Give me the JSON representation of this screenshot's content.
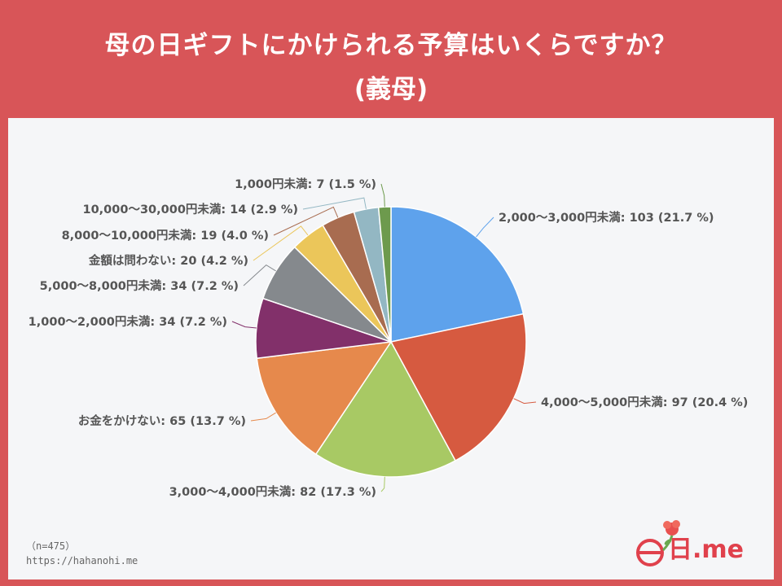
{
  "header": {
    "title_line1": "母の日ギフトにかけられる予算はいくらですか？",
    "title_line2": "(義母)"
  },
  "footer": {
    "sample": "（n=475）",
    "url": "https://hahanohi.me"
  },
  "logo": {
    "text": "日.me"
  },
  "colors": {
    "header_bg": "#d85558",
    "panel_bg": "#f5f6f8"
  },
  "chart_data": {
    "type": "pie",
    "title": "母の日ギフトにかけられる予算はいくらですか？ (義母)",
    "n": 475,
    "slices": [
      {
        "label": "2,000〜3,000円未満",
        "value": 103,
        "percent": 21.7,
        "color": "#5ea2ec",
        "text": "2,000〜3,000円未満: 103 (21.7 %)"
      },
      {
        "label": "4,000〜5,000円未満",
        "value": 97,
        "percent": 20.4,
        "color": "#d65a40",
        "text": "4,000〜5,000円未満: 97 (20.4 %)"
      },
      {
        "label": "3,000〜4,000円未満",
        "value": 82,
        "percent": 17.3,
        "color": "#a8c964",
        "text": "3,000〜4,000円未満: 82 (17.3 %)"
      },
      {
        "label": "お金をかけない",
        "value": 65,
        "percent": 13.7,
        "color": "#e6894c",
        "text": "お金をかけない: 65 (13.7 %)"
      },
      {
        "label": "1,000〜2,000円未満",
        "value": 34,
        "percent": 7.2,
        "color": "#82306a",
        "text": "1,000〜2,000円未満: 34 (7.2 %)"
      },
      {
        "label": "5,000〜8,000円未満",
        "value": 34,
        "percent": 7.2,
        "color": "#85898d",
        "text": "5,000〜8,000円未満: 34 (7.2 %)"
      },
      {
        "label": "金額は問わない",
        "value": 20,
        "percent": 4.2,
        "color": "#ebc65a",
        "text": "金額は問わない: 20 (4.2 %)"
      },
      {
        "label": "8,000〜10,000円未満",
        "value": 19,
        "percent": 4.0,
        "color": "#a86c50",
        "text": "8,000〜10,000円未満: 19 (4.0 %)"
      },
      {
        "label": "10,000〜30,000円未満",
        "value": 14,
        "percent": 2.9,
        "color": "#93b7c3",
        "text": "10,000〜30,000円未満: 14 (2.9 %)"
      },
      {
        "label": "1,000円未満",
        "value": 7,
        "percent": 1.5,
        "color": "#6d9a4d",
        "text": "1,000円未満: 7 (1.5 %)"
      }
    ]
  }
}
